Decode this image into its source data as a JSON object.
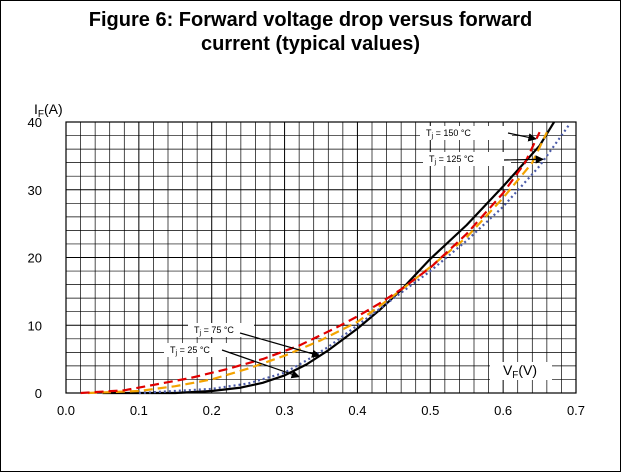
{
  "title_line1": "Figure 6: Forward voltage drop versus forward",
  "title_line2": "current (typical values)",
  "chart_data": {
    "type": "line",
    "title": "Figure 6: Forward voltage drop versus forward current (typical values)",
    "xlabel": "VF(V)",
    "ylabel": "IF(A)",
    "xlim": [
      0,
      0.7
    ],
    "ylim": [
      0,
      40
    ],
    "x_ticks": [
      "0.0",
      "0.1",
      "0.2",
      "0.3",
      "0.4",
      "0.5",
      "0.6",
      "0.7"
    ],
    "y_ticks": [
      "0",
      "10",
      "20",
      "30",
      "40"
    ],
    "grid": true,
    "series": [
      {
        "name": "Tj = 25 °C",
        "style": "solid",
        "color": "#000000",
        "x": [
          0.05,
          0.15,
          0.2,
          0.24,
          0.27,
          0.3,
          0.33,
          0.36,
          0.4,
          0.43,
          0.46,
          0.5,
          0.55,
          0.6,
          0.65,
          0.67
        ],
        "y": [
          0,
          0,
          0.3,
          0.8,
          1.5,
          2.6,
          4.2,
          6.3,
          9.5,
          12.2,
          15.2,
          19.8,
          24.8,
          30.5,
          36.5,
          40
        ]
      },
      {
        "name": "Tj = 75 °C",
        "style": "dotted",
        "color": "#4a5aa8",
        "x": [
          0.1,
          0.2,
          0.25,
          0.3,
          0.33,
          0.36,
          0.4,
          0.44,
          0.47,
          0.5,
          0.55,
          0.6,
          0.65,
          0.69
        ],
        "y": [
          0,
          0.6,
          1.4,
          3.0,
          4.8,
          6.8,
          10.0,
          13.2,
          15.6,
          18.0,
          22.5,
          27.5,
          33.5,
          39.5
        ]
      },
      {
        "name": "Tj = 125 °C",
        "style": "dashed",
        "color": "#f4a300",
        "x": [
          0.03,
          0.1,
          0.15,
          0.2,
          0.25,
          0.3,
          0.35,
          0.4,
          0.43,
          0.46,
          0.5,
          0.55,
          0.6,
          0.64,
          0.66
        ],
        "y": [
          0,
          0.3,
          1.0,
          2.0,
          3.6,
          5.5,
          7.8,
          10.5,
          12.8,
          15.2,
          18.6,
          23.0,
          28.8,
          34.0,
          38.5
        ]
      },
      {
        "name": "Tj = 150 °C",
        "style": "dashed",
        "color": "#e00000",
        "x": [
          0.02,
          0.08,
          0.12,
          0.17,
          0.22,
          0.27,
          0.32,
          0.37,
          0.4,
          0.43,
          0.46,
          0.5,
          0.55,
          0.6,
          0.63,
          0.65
        ],
        "y": [
          0,
          0.4,
          1.2,
          2.2,
          3.5,
          5.0,
          7.0,
          9.6,
          11.3,
          13.2,
          15.3,
          18.5,
          23.5,
          29.5,
          34.0,
          38.5
        ]
      }
    ],
    "annotations": [
      {
        "label": "Tj = 150 °C",
        "sub_prefix": "T",
        "sub": "j",
        "rest": " = 150 °C",
        "points_to": [
          0.645,
          37.5
        ]
      },
      {
        "label": "Tj = 125 °C",
        "sub_prefix": "T",
        "sub": "j",
        "rest": " = 125 °C",
        "points_to": [
          0.655,
          34.5
        ]
      },
      {
        "label": "Tj = 75 °C",
        "sub_prefix": "T",
        "sub": "j",
        "rest": " = 75 °C",
        "points_to": [
          0.348,
          5.5
        ]
      },
      {
        "label": "Tj = 25 °C",
        "sub_prefix": "T",
        "sub": "j",
        "rest": " = 25 °C",
        "points_to": [
          0.32,
          2.4
        ]
      }
    ]
  }
}
